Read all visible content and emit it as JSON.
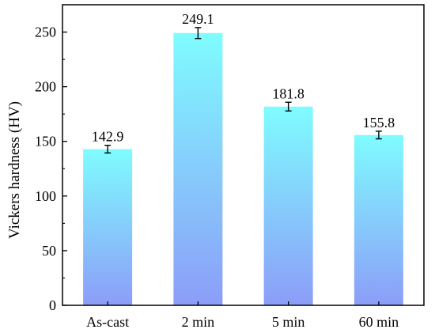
{
  "chart_data": {
    "type": "bar",
    "title": "",
    "xlabel": "",
    "ylabel": "Vickers hardness (HV)",
    "categories": [
      "As-cast",
      "2 min",
      "5 min",
      "60 min"
    ],
    "values": [
      142.9,
      249.1,
      181.8,
      155.8
    ],
    "value_labels": [
      "142.9",
      "249.1",
      "181.8",
      "155.8"
    ],
    "errors": [
      3.5,
      5.0,
      4.0,
      3.5
    ],
    "ylim": [
      0,
      275
    ],
    "yticks": [
      0,
      50,
      100,
      150,
      200,
      250
    ],
    "grid": false,
    "legend": "none",
    "bar_gradient": {
      "top": "#7ffcff",
      "bottom": "#8c9df8"
    }
  }
}
